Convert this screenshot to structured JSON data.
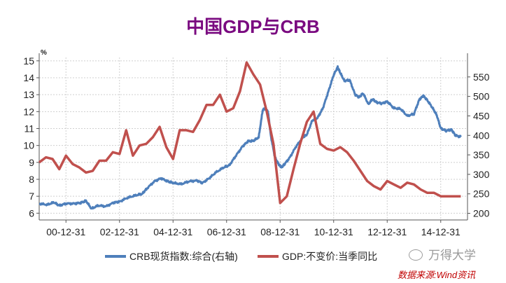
{
  "colors": {
    "title": "#7a0a80",
    "crb": "#4e7fbb",
    "gdp": "#c0504d",
    "source": "#c00000",
    "grid": "#cfcfcf",
    "axis": "#555555"
  },
  "watermark": {
    "text": "万得大学",
    "icon": "wechat-icon"
  },
  "source": "数据来源:Wind资讯",
  "chart_data": {
    "type": "line",
    "title": "中国GDP与CRB",
    "left_axis": {
      "unit_label": "%",
      "ylim": [
        5.6,
        15.2
      ],
      "ticks": [
        6,
        7,
        8,
        9,
        10,
        11,
        12,
        13,
        14,
        15
      ]
    },
    "right_axis": {
      "ylim": [
        183,
        600
      ],
      "ticks": [
        200,
        250,
        300,
        350,
        400,
        450,
        500,
        550
      ]
    },
    "x_axis": {
      "range": [
        2000.0,
        2016.0
      ],
      "tick_labels": [
        "00-12-31",
        "02-12-31",
        "04-12-31",
        "06-12-31",
        "08-12-31",
        "10-12-31",
        "12-12-31",
        "14-12-31"
      ],
      "tick_positions": [
        2001,
        2003,
        2005,
        2007,
        2009,
        2011,
        2013,
        2015
      ]
    },
    "legend": [
      "CRB现货指数:综合(右轴)",
      "GDP:不变价:当季同比"
    ],
    "series": [
      {
        "name": "GDP:不变价:当季同比",
        "axis": "left",
        "x": [
          2000.0,
          2000.25,
          2000.5,
          2000.75,
          2001.0,
          2001.25,
          2001.5,
          2001.75,
          2002.0,
          2002.25,
          2002.5,
          2002.75,
          2003.0,
          2003.25,
          2003.5,
          2003.75,
          2004.0,
          2004.25,
          2004.5,
          2004.75,
          2005.0,
          2005.25,
          2005.5,
          2005.75,
          2006.0,
          2006.25,
          2006.5,
          2006.75,
          2007.0,
          2007.25,
          2007.5,
          2007.75,
          2008.0,
          2008.25,
          2008.5,
          2008.75,
          2009.0,
          2009.25,
          2009.5,
          2009.75,
          2010.0,
          2010.25,
          2010.5,
          2010.75,
          2011.0,
          2011.25,
          2011.5,
          2011.75,
          2012.0,
          2012.25,
          2012.5,
          2012.75,
          2013.0,
          2013.25,
          2013.5,
          2013.75,
          2014.0,
          2014.25,
          2014.5,
          2014.75,
          2015.0,
          2015.25,
          2015.5,
          2015.75
        ],
        "values": [
          9.0,
          9.3,
          9.2,
          8.6,
          9.4,
          8.9,
          8.7,
          8.4,
          8.5,
          9.1,
          9.1,
          9.6,
          9.5,
          10.9,
          9.4,
          10.0,
          10.1,
          10.5,
          11.1,
          9.9,
          9.2,
          10.9,
          10.9,
          10.8,
          11.5,
          12.4,
          12.4,
          13.0,
          12.0,
          12.2,
          13.2,
          14.9,
          14.2,
          13.6,
          12.0,
          10.1,
          6.6,
          7.0,
          8.6,
          10.1,
          11.4,
          12.0,
          10.1,
          9.8,
          9.7,
          9.9,
          9.6,
          9.1,
          8.5,
          7.9,
          7.6,
          7.4,
          7.9,
          7.7,
          7.5,
          7.8,
          7.7,
          7.4,
          7.2,
          7.2,
          7.0,
          7.0,
          7.0,
          7.0
        ]
      },
      {
        "name": "CRB现货指数:综合(右轴)",
        "axis": "right",
        "x": [
          2000.0,
          2000.3,
          2000.55,
          2000.75,
          2001.0,
          2001.3,
          2001.55,
          2001.75,
          2001.95,
          2002.2,
          2002.5,
          2002.8,
          2003.0,
          2003.3,
          2003.6,
          2003.85,
          2004.0,
          2004.3,
          2004.55,
          2004.8,
          2005.0,
          2005.3,
          2005.6,
          2005.9,
          2006.1,
          2006.35,
          2006.6,
          2006.9,
          2007.1,
          2007.35,
          2007.6,
          2007.8,
          2008.0,
          2008.2,
          2008.35,
          2008.45,
          2008.55,
          2008.65,
          2008.8,
          2008.95,
          2009.05,
          2009.15,
          2009.35,
          2009.6,
          2009.85,
          2010.0,
          2010.2,
          2010.4,
          2010.6,
          2010.8,
          2011.0,
          2011.15,
          2011.25,
          2011.4,
          2011.6,
          2011.8,
          2011.95,
          2012.1,
          2012.3,
          2012.45,
          2012.6,
          2012.8,
          2013.0,
          2013.25,
          2013.5,
          2013.75,
          2014.0,
          2014.2,
          2014.35,
          2014.5,
          2014.7,
          2014.85,
          2015.0,
          2015.2,
          2015.4,
          2015.55,
          2015.75
        ],
        "values": [
          225,
          222,
          228,
          220,
          225,
          225,
          227,
          232,
          212,
          220,
          218,
          228,
          230,
          240,
          246,
          250,
          262,
          282,
          290,
          282,
          278,
          275,
          282,
          284,
          278,
          290,
          305,
          318,
          323,
          348,
          372,
          385,
          386,
          395,
          465,
          470,
          460,
          400,
          345,
          325,
          318,
          325,
          342,
          372,
          395,
          402,
          438,
          445,
          470,
          512,
          555,
          575,
          560,
          540,
          542,
          505,
          498,
          508,
          480,
          493,
          485,
          482,
          487,
          470,
          468,
          450,
          455,
          492,
          502,
          490,
          470,
          452,
          418,
          412,
          415,
          400,
          396
        ]
      }
    ]
  }
}
